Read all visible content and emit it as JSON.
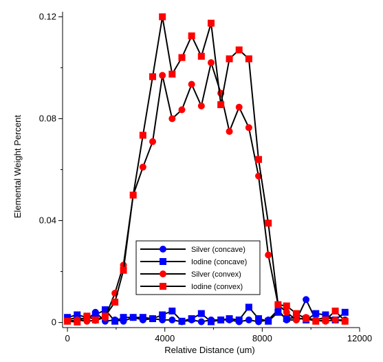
{
  "chart_data": {
    "type": "line",
    "xlabel": "Relative Distance (um)",
    "ylabel": "Elemental Weight Percent",
    "xlim": [
      -200,
      12000
    ],
    "ylim": [
      -0.002,
      0.122
    ],
    "xticks": [
      0,
      4000,
      8000,
      12000
    ],
    "xtick_labels": [
      "0",
      "4000",
      "8000",
      "12000"
    ],
    "yticks": [
      0,
      0.04,
      0.08,
      0.12
    ],
    "ytick_labels": [
      "0",
      "0.04",
      "0.08",
      "0.12"
    ],
    "grid": false,
    "legend_position": "bottom-center",
    "series": [
      {
        "name": "Silver (concave)",
        "color": "#0000ff",
        "marker": "circle",
        "points": [
          [
            0,
            0.001
          ],
          [
            400,
            0.002
          ],
          [
            800,
            0.001
          ],
          [
            1150,
            0.004
          ],
          [
            1550,
            0.0005
          ],
          [
            1950,
            0.001
          ],
          [
            2300,
            0.0005
          ],
          [
            2700,
            0.002
          ],
          [
            3100,
            0.001
          ],
          [
            3500,
            0.0015
          ],
          [
            3900,
            0.001
          ],
          [
            4300,
            0.001
          ],
          [
            4700,
            0.0003
          ],
          [
            5100,
            0.001
          ],
          [
            5500,
            0.0003
          ],
          [
            5900,
            0.001
          ],
          [
            6300,
            0.001
          ],
          [
            6650,
            0.001
          ],
          [
            7050,
            0.0003
          ],
          [
            7450,
            0.001
          ],
          [
            7850,
            0.0003
          ],
          [
            8250,
            0.001
          ],
          [
            8650,
            0.005
          ],
          [
            9000,
            0.001
          ],
          [
            9400,
            0.001
          ],
          [
            9800,
            0.009
          ],
          [
            10200,
            0.001
          ],
          [
            10600,
            0.002
          ],
          [
            11000,
            0.001
          ],
          [
            11400,
            0.001
          ]
        ]
      },
      {
        "name": "Iodine (concave)",
        "color": "#0000ff",
        "marker": "square",
        "points": [
          [
            0,
            0.002
          ],
          [
            400,
            0.003
          ],
          [
            800,
            0.002
          ],
          [
            1150,
            0.003
          ],
          [
            1550,
            0.005
          ],
          [
            1950,
            0.0005
          ],
          [
            2300,
            0.002
          ],
          [
            2700,
            0.002
          ],
          [
            3100,
            0.002
          ],
          [
            3500,
            0.0015
          ],
          [
            3900,
            0.003
          ],
          [
            4300,
            0.0045
          ],
          [
            4700,
            0.0005
          ],
          [
            5100,
            0.0015
          ],
          [
            5500,
            0.0035
          ],
          [
            5900,
            0.0003
          ],
          [
            6300,
            0.001
          ],
          [
            6650,
            0.0015
          ],
          [
            7050,
            0.001
          ],
          [
            7450,
            0.006
          ],
          [
            7850,
            0.0015
          ],
          [
            8250,
            0.0005
          ],
          [
            8650,
            0.004
          ],
          [
            9000,
            0.0015
          ],
          [
            9400,
            0.002
          ],
          [
            9800,
            0.001
          ],
          [
            10200,
            0.0035
          ],
          [
            10600,
            0.003
          ],
          [
            11000,
            0.001
          ],
          [
            11400,
            0.004
          ]
        ]
      },
      {
        "name": "Silver (convex)",
        "color": "#ff0000",
        "marker": "circle",
        "points": [
          [
            0,
            0.0005
          ],
          [
            400,
            0.001
          ],
          [
            800,
            0.0005
          ],
          [
            1150,
            0.0008
          ],
          [
            1550,
            0.002
          ],
          [
            1950,
            0.0115
          ],
          [
            2300,
            0.0225
          ],
          [
            2700,
            0.05
          ],
          [
            3100,
            0.061
          ],
          [
            3500,
            0.071
          ],
          [
            3900,
            0.097
          ],
          [
            4300,
            0.08
          ],
          [
            4700,
            0.0835
          ],
          [
            5100,
            0.0935
          ],
          [
            5500,
            0.085
          ],
          [
            5900,
            0.102
          ],
          [
            6300,
            0.09
          ],
          [
            6650,
            0.075
          ],
          [
            7050,
            0.0845
          ],
          [
            7450,
            0.0765
          ],
          [
            7850,
            0.0575
          ],
          [
            8250,
            0.0265
          ],
          [
            8650,
            0.007
          ],
          [
            9000,
            0.004
          ],
          [
            9400,
            0.001
          ],
          [
            9800,
            0.002
          ],
          [
            10200,
            0.0008
          ],
          [
            10600,
            0.0005
          ],
          [
            11000,
            0.001
          ],
          [
            11400,
            0.0005
          ]
        ]
      },
      {
        "name": "Iodine (convex)",
        "color": "#ff0000",
        "marker": "square",
        "points": [
          [
            0,
            0.0005
          ],
          [
            400,
            0.0002
          ],
          [
            800,
            0.0025
          ],
          [
            1150,
            0.001
          ],
          [
            1550,
            0.0025
          ],
          [
            1950,
            0.008
          ],
          [
            2300,
            0.0205
          ],
          [
            2700,
            0.05
          ],
          [
            3100,
            0.0735
          ],
          [
            3500,
            0.0965
          ],
          [
            3900,
            0.12
          ],
          [
            4300,
            0.0975
          ],
          [
            4700,
            0.104
          ],
          [
            5100,
            0.1125
          ],
          [
            5500,
            0.1045
          ],
          [
            5900,
            0.1175
          ],
          [
            6300,
            0.0855
          ],
          [
            6650,
            0.1035
          ],
          [
            7050,
            0.107
          ],
          [
            7450,
            0.1035
          ],
          [
            7850,
            0.064
          ],
          [
            8250,
            0.039
          ],
          [
            8650,
            0.007
          ],
          [
            9000,
            0.0065
          ],
          [
            9400,
            0.0035
          ],
          [
            9800,
            0.0015
          ],
          [
            10200,
            0.0005
          ],
          [
            10600,
            0.001
          ],
          [
            11000,
            0.0045
          ],
          [
            11400,
            0.0005
          ]
        ]
      }
    ]
  }
}
